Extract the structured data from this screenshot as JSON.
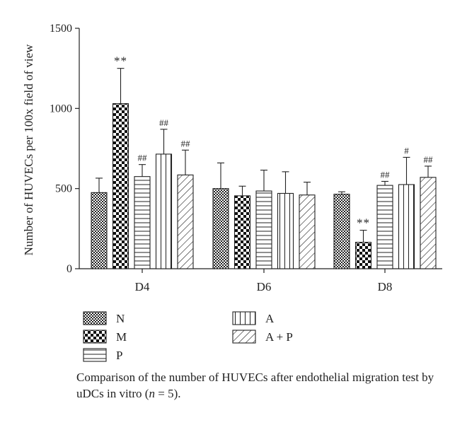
{
  "chart_data": {
    "type": "bar",
    "categories": [
      "D4",
      "D6",
      "D8"
    ],
    "ylabel": "Number of HUVECs per 100x field of view",
    "ylim": [
      0,
      1500
    ],
    "yticks": [
      "0",
      "500",
      "1000",
      "1500"
    ],
    "grid": false,
    "legend_position": "bottom",
    "series": [
      {
        "name": "N",
        "pattern": "fine-checker",
        "values": [
          475,
          500,
          465
        ],
        "errors": [
          90,
          160,
          15
        ],
        "annotations": [
          "",
          "",
          ""
        ]
      },
      {
        "name": "M",
        "pattern": "coarse-checker",
        "values": [
          1030,
          455,
          165
        ],
        "errors": [
          220,
          60,
          75
        ],
        "annotations": [
          "**",
          "",
          "**"
        ]
      },
      {
        "name": "P",
        "pattern": "horizontal-lines",
        "values": [
          575,
          485,
          520
        ],
        "errors": [
          75,
          130,
          25
        ],
        "annotations": [
          "##",
          "",
          "##"
        ]
      },
      {
        "name": "A",
        "pattern": "vertical-lines",
        "values": [
          715,
          470,
          525
        ],
        "errors": [
          155,
          135,
          170
        ],
        "annotations": [
          "##",
          "",
          "#"
        ]
      },
      {
        "name": "A + P",
        "pattern": "diagonal-lines",
        "values": [
          585,
          460,
          570
        ],
        "errors": [
          155,
          80,
          70
        ],
        "annotations": [
          "##",
          "",
          "##"
        ]
      }
    ]
  },
  "caption": {
    "text_before": "Comparison of the number of HUVECs after endothelial migration test by uDCs in vitro (",
    "n_symbol": "n",
    "text_after": " = 5)."
  }
}
